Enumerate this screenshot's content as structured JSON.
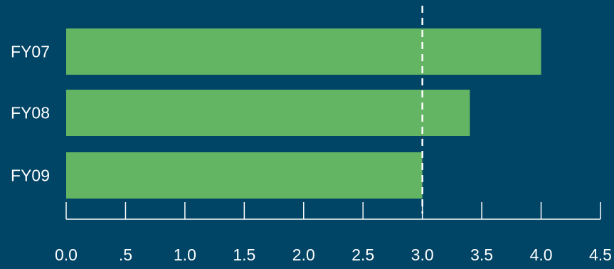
{
  "chart_data": {
    "type": "bar",
    "orientation": "horizontal",
    "categories": [
      "FY07",
      "FY08",
      "FY09"
    ],
    "values": [
      4.0,
      3.4,
      3.0
    ],
    "xlim": [
      0,
      4.5
    ],
    "ticks": [
      0,
      0.5,
      1.0,
      1.5,
      2.0,
      2.5,
      3.0,
      3.5,
      4.0,
      4.5
    ],
    "tick_labels": [
      "0.0",
      ".5",
      "1.0",
      "1.5",
      "2.0",
      "2.5",
      "3.0",
      "3.5",
      "4.0",
      "4.5"
    ],
    "reference_line": 3.0,
    "title": "",
    "xlabel": "",
    "ylabel": "",
    "grid": false,
    "legend": "none"
  },
  "colors": {
    "background": "#004466",
    "bar": "#63b563",
    "axis": "#ffffff",
    "text": "#ffffff",
    "reference_line": "#ffffff"
  }
}
